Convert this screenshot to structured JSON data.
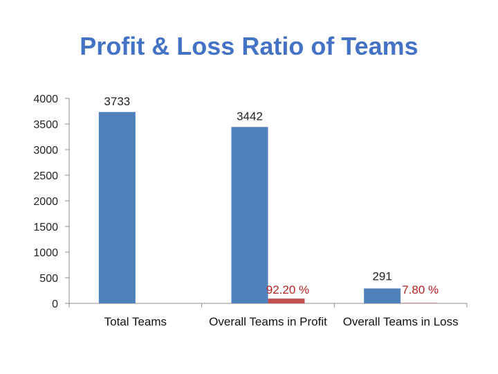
{
  "chart_data": {
    "type": "bar",
    "title": "Profit & Loss Ratio of Teams",
    "categories": [
      "Total Teams",
      "Overall Teams in Profit",
      "Overall Teams in Loss"
    ],
    "series": [
      {
        "values": [
          3733,
          3442,
          291
        ],
        "labels": [
          "3733",
          "3442",
          "291"
        ],
        "color": "#4f81bd",
        "label_color": "#222222"
      },
      {
        "values": [
          null,
          92.2,
          7.8
        ],
        "labels": [
          "",
          "92.20 %",
          "7.80 %"
        ],
        "color": "#c0504d",
        "label_color": "#b22222"
      }
    ],
    "yticks": [
      "0",
      "500",
      "1000",
      "1500",
      "2000",
      "2500",
      "3000",
      "3500",
      "4000"
    ],
    "ylim": [
      0,
      4000
    ],
    "xlabel": "",
    "ylabel": "",
    "grid": false,
    "legend": "none"
  }
}
